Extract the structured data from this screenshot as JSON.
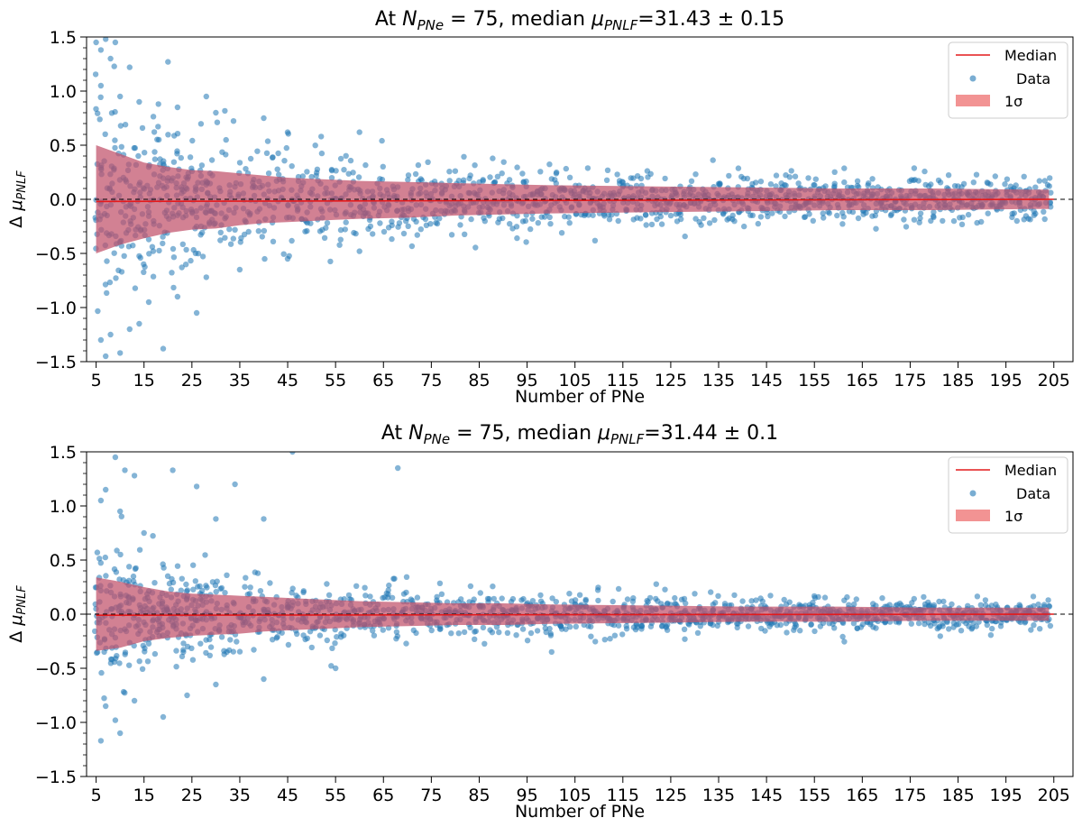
{
  "chart_data": [
    {
      "type": "scatter",
      "title": {
        "prefix": "At ",
        "n_symbol": "N",
        "n_sub": "PNe",
        "n_eq": " = 75, median ",
        "mu_symbol": "μ",
        "mu_sub": "PNLF",
        "mu_value": "=31.43 ± 0.15"
      },
      "xlabel": "Number of PNe",
      "ylabel": {
        "symbol": "Δ ",
        "mu": "μ",
        "sub": "PNLF"
      },
      "xlim": [
        3,
        209
      ],
      "ylim": [
        -1.5,
        1.5
      ],
      "x_ticks": [
        "5",
        "15",
        "25",
        "35",
        "45",
        "55",
        "65",
        "75",
        "85",
        "95",
        "105",
        "115",
        "125",
        "135",
        "145",
        "155",
        "165",
        "175",
        "185",
        "195",
        "205"
      ],
      "y_ticks": [
        "1.5",
        "1.0",
        "0.5",
        "0.0",
        "−0.5",
        "−1.0",
        "−1.5"
      ],
      "y_tick_values": [
        1.5,
        1.0,
        0.5,
        0.0,
        -0.5,
        -1.0,
        -1.5
      ],
      "zero_line": 0.0,
      "legend": {
        "placement": "top-right",
        "entries": [
          "Median",
          "Data",
          "1σ"
        ]
      },
      "series": [
        {
          "name": "Median",
          "x": [
            5,
            205
          ],
          "values": [
            -0.02,
            0.0
          ]
        },
        {
          "name": "1σ",
          "x": [
            5,
            10,
            15,
            20,
            25,
            30,
            35,
            40,
            45,
            50,
            55,
            60,
            70,
            80,
            90,
            100,
            120,
            140,
            160,
            180,
            200,
            204
          ],
          "upper": [
            0.5,
            0.42,
            0.34,
            0.3,
            0.27,
            0.26,
            0.24,
            0.22,
            0.2,
            0.19,
            0.18,
            0.17,
            0.16,
            0.15,
            0.14,
            0.13,
            0.12,
            0.11,
            0.1,
            0.1,
            0.09,
            0.09
          ],
          "lower": [
            -0.5,
            -0.42,
            -0.36,
            -0.31,
            -0.28,
            -0.27,
            -0.24,
            -0.22,
            -0.21,
            -0.2,
            -0.19,
            -0.18,
            -0.17,
            -0.15,
            -0.14,
            -0.13,
            -0.12,
            -0.11,
            -0.1,
            -0.1,
            -0.09,
            -0.09
          ]
        },
        {
          "name": "Data",
          "x_range": [
            5,
            204
          ],
          "scatter_core": [
            0.5,
            0.42,
            0.34,
            0.3,
            0.27,
            0.26,
            0.24,
            0.22,
            0.2,
            0.19,
            0.18,
            0.17,
            0.16,
            0.15,
            0.14,
            0.13,
            0.12,
            0.11,
            0.1,
            0.1,
            0.09,
            0.09
          ],
          "outliers": [
            [
              5,
              1.45
            ],
            [
              7,
              1.48
            ],
            [
              9,
              1.45
            ],
            [
              6,
              1.38
            ],
            [
              8,
              1.3
            ],
            [
              12,
              1.22
            ],
            [
              20,
              1.27
            ],
            [
              6,
              1.05
            ],
            [
              10,
              0.95
            ],
            [
              14,
              0.9
            ],
            [
              18,
              0.88
            ],
            [
              22,
              0.85
            ],
            [
              28,
              0.95
            ],
            [
              30,
              0.8
            ],
            [
              40,
              0.75
            ],
            [
              45,
              0.62
            ],
            [
              52,
              0.58
            ],
            [
              60,
              0.62
            ],
            [
              6,
              -1.3
            ],
            [
              8,
              -1.25
            ],
            [
              10,
              -1.42
            ],
            [
              7,
              -1.45
            ],
            [
              12,
              -1.2
            ],
            [
              14,
              -1.15
            ],
            [
              19,
              -1.38
            ],
            [
              26,
              -1.05
            ],
            [
              16,
              -0.95
            ],
            [
              22,
              -0.9
            ],
            [
              28,
              -0.72
            ],
            [
              35,
              -0.65
            ],
            [
              45,
              -0.55
            ],
            [
              60,
              -0.48
            ]
          ]
        }
      ]
    },
    {
      "type": "scatter",
      "title": {
        "prefix": "At ",
        "n_symbol": "N",
        "n_sub": "PNe",
        "n_eq": " = 75, median ",
        "mu_symbol": "μ",
        "mu_sub": "PNLF",
        "mu_value": "=31.44 ± 0.1"
      },
      "xlabel": "Number of PNe",
      "ylabel": {
        "symbol": "Δ ",
        "mu": "μ",
        "sub": "PNLF"
      },
      "xlim": [
        3,
        209
      ],
      "ylim": [
        -1.5,
        1.5
      ],
      "x_ticks": [
        "5",
        "15",
        "25",
        "35",
        "45",
        "55",
        "65",
        "75",
        "85",
        "95",
        "105",
        "115",
        "125",
        "135",
        "145",
        "155",
        "165",
        "175",
        "185",
        "195",
        "205"
      ],
      "y_ticks": [
        "1.5",
        "1.0",
        "0.5",
        "0.0",
        "−0.5",
        "−1.0",
        "−1.5"
      ],
      "y_tick_values": [
        1.5,
        1.0,
        0.5,
        0.0,
        -0.5,
        -1.0,
        -1.5
      ],
      "zero_line": 0.0,
      "legend": {
        "placement": "top-right",
        "entries": [
          "Median",
          "Data",
          "1σ"
        ]
      },
      "series": [
        {
          "name": "Median",
          "x": [
            5,
            205
          ],
          "values": [
            -0.01,
            0.0
          ]
        },
        {
          "name": "1σ",
          "x": [
            5,
            10,
            15,
            20,
            25,
            30,
            35,
            40,
            45,
            50,
            55,
            60,
            70,
            80,
            90,
            100,
            120,
            140,
            160,
            180,
            200,
            204
          ],
          "upper": [
            0.34,
            0.3,
            0.25,
            0.21,
            0.19,
            0.18,
            0.17,
            0.16,
            0.15,
            0.14,
            0.13,
            0.12,
            0.11,
            0.1,
            0.1,
            0.09,
            0.08,
            0.07,
            0.07,
            0.06,
            0.06,
            0.06
          ],
          "lower": [
            -0.34,
            -0.31,
            -0.25,
            -0.22,
            -0.2,
            -0.19,
            -0.18,
            -0.16,
            -0.15,
            -0.14,
            -0.13,
            -0.12,
            -0.11,
            -0.1,
            -0.1,
            -0.09,
            -0.08,
            -0.07,
            -0.07,
            -0.06,
            -0.06,
            -0.06
          ]
        },
        {
          "name": "Data",
          "x_range": [
            5,
            204
          ],
          "scatter_core": [
            0.34,
            0.3,
            0.25,
            0.21,
            0.19,
            0.18,
            0.17,
            0.16,
            0.15,
            0.14,
            0.13,
            0.12,
            0.11,
            0.1,
            0.1,
            0.09,
            0.08,
            0.07,
            0.07,
            0.06,
            0.06,
            0.06
          ],
          "outliers": [
            [
              9,
              1.45
            ],
            [
              7,
              1.15
            ],
            [
              11,
              1.33
            ],
            [
              13,
              1.28
            ],
            [
              21,
              1.33
            ],
            [
              26,
              1.18
            ],
            [
              34,
              1.2
            ],
            [
              30,
              0.88
            ],
            [
              40,
              0.88
            ],
            [
              46,
              1.5
            ],
            [
              68,
              1.35
            ],
            [
              6,
              1.05
            ],
            [
              10,
              0.95
            ],
            [
              15,
              0.75
            ],
            [
              6,
              -1.17
            ],
            [
              10,
              -1.1
            ],
            [
              9,
              -0.98
            ],
            [
              7,
              -0.85
            ],
            [
              19,
              -0.95
            ],
            [
              13,
              -0.8
            ],
            [
              24,
              -0.75
            ],
            [
              30,
              -0.65
            ],
            [
              40,
              -0.6
            ],
            [
              55,
              -0.5
            ]
          ]
        }
      ]
    }
  ]
}
